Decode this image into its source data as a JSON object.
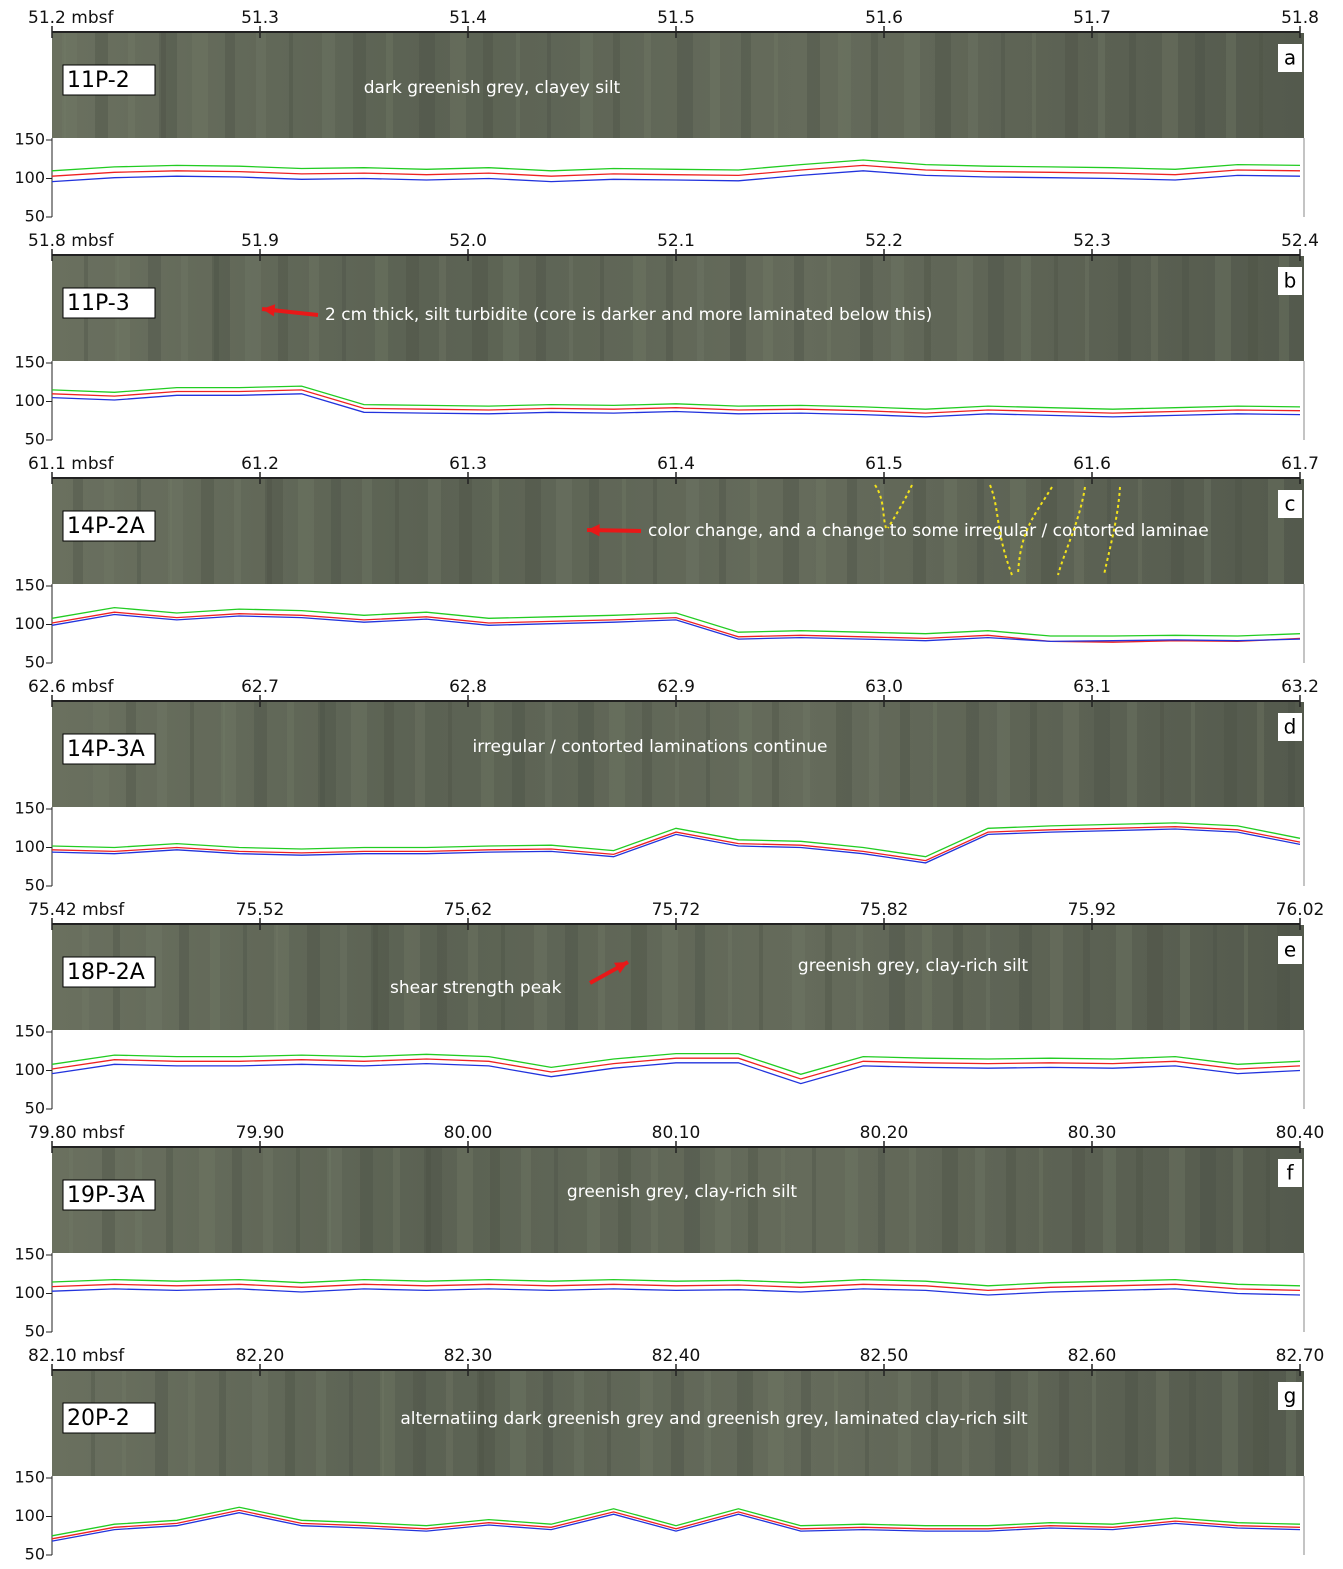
{
  "chart_data": [
    {
      "type": "line",
      "panel": "a",
      "section": "11P-2",
      "annotations": [
        "dark greenish grey, clayey silt"
      ],
      "xlim": [
        51.2,
        51.8
      ],
      "xticks": [
        {
          "value": 51.2,
          "label": "51.2 mbsf"
        },
        51.3,
        51.4,
        51.5,
        51.6,
        51.7,
        51.8
      ],
      "ylim": [
        50,
        150
      ],
      "yticks": [
        50,
        100,
        150
      ],
      "x": [
        51.2,
        51.23,
        51.26,
        51.29,
        51.32,
        51.35,
        51.38,
        51.41,
        51.44,
        51.47,
        51.5,
        51.53,
        51.56,
        51.59,
        51.62,
        51.65,
        51.68,
        51.71,
        51.74,
        51.77,
        51.8
      ],
      "series": [
        {
          "color": "#22cc22",
          "values": [
            110,
            115,
            117,
            116,
            113,
            114,
            112,
            114,
            110,
            113,
            112,
            111,
            118,
            124,
            118,
            116,
            115,
            114,
            112,
            118,
            117
          ]
        },
        {
          "color": "#ee2222",
          "values": [
            103,
            108,
            110,
            109,
            106,
            107,
            105,
            107,
            103,
            106,
            105,
            104,
            111,
            117,
            111,
            109,
            108,
            107,
            105,
            111,
            110
          ]
        },
        {
          "color": "#2233dd",
          "values": [
            96,
            101,
            103,
            102,
            99,
            100,
            98,
            100,
            96,
            99,
            98,
            97,
            104,
            110,
            104,
            102,
            101,
            100,
            98,
            104,
            103
          ]
        }
      ]
    },
    {
      "type": "line",
      "panel": "b",
      "section": "11P-3",
      "annotations": [
        "2 cm thick, silt turbidite (core is darker and more laminated below this)"
      ],
      "xlim": [
        51.8,
        52.4
      ],
      "xticks": [
        {
          "value": 51.8,
          "label": "51.8 mbsf"
        },
        51.9,
        {
          "value": 52,
          "label": "52.0"
        },
        52.1,
        52.2,
        52.3,
        52.4
      ],
      "ylim": [
        50,
        150
      ],
      "yticks": [
        50,
        100,
        150
      ],
      "x": [
        51.8,
        51.83,
        51.86,
        51.89,
        51.92,
        51.95,
        51.98,
        52.01,
        52.04,
        52.07,
        52.1,
        52.13,
        52.16,
        52.19,
        52.22,
        52.25,
        52.28,
        52.31,
        52.34,
        52.37,
        52.4
      ],
      "series": [
        {
          "color": "#22cc22",
          "values": [
            115,
            112,
            118,
            118,
            120,
            96,
            95,
            94,
            96,
            95,
            97,
            94,
            95,
            93,
            90,
            94,
            92,
            90,
            92,
            94,
            93
          ]
        },
        {
          "color": "#ee2222",
          "values": [
            110,
            107,
            113,
            113,
            115,
            91,
            90,
            89,
            91,
            90,
            92,
            89,
            90,
            88,
            85,
            89,
            87,
            85,
            87,
            89,
            88
          ]
        },
        {
          "color": "#2233dd",
          "values": [
            105,
            102,
            108,
            108,
            110,
            86,
            85,
            84,
            86,
            85,
            87,
            84,
            85,
            83,
            80,
            84,
            82,
            80,
            82,
            84,
            83
          ]
        }
      ]
    },
    {
      "type": "line",
      "panel": "c",
      "section": "14P-2A",
      "annotations": [
        "color change, and a change to some irregular / contorted laminae"
      ],
      "xlim": [
        61.1,
        61.7
      ],
      "xticks": [
        {
          "value": 61.1,
          "label": "61.1 mbsf"
        },
        61.2,
        61.3,
        61.4,
        61.5,
        61.6,
        61.7
      ],
      "ylim": [
        50,
        150
      ],
      "yticks": [
        50,
        100,
        150
      ],
      "x": [
        61.1,
        61.13,
        61.16,
        61.19,
        61.22,
        61.25,
        61.28,
        61.31,
        61.34,
        61.37,
        61.4,
        61.43,
        61.46,
        61.49,
        61.52,
        61.55,
        61.58,
        61.61,
        61.64,
        61.67,
        61.7
      ],
      "series": [
        {
          "color": "#22cc22",
          "values": [
            108,
            122,
            115,
            120,
            118,
            112,
            116,
            108,
            110,
            112,
            115,
            90,
            92,
            90,
            88,
            92,
            85,
            85,
            86,
            85,
            88
          ]
        },
        {
          "color": "#ee2222",
          "values": [
            102,
            116,
            109,
            114,
            112,
            106,
            110,
            102,
            104,
            106,
            109,
            84,
            86,
            84,
            82,
            86,
            78,
            77,
            79,
            78,
            82
          ]
        },
        {
          "color": "#2233dd",
          "values": [
            99,
            113,
            106,
            111,
            109,
            103,
            107,
            99,
            101,
            103,
            106,
            81,
            83,
            81,
            79,
            83,
            78,
            79,
            80,
            79,
            81
          ]
        }
      ]
    },
    {
      "type": "line",
      "panel": "d",
      "section": "14P-3A",
      "annotations": [
        "irregular / contorted laminations continue"
      ],
      "xlim": [
        62.6,
        63.2
      ],
      "xticks": [
        {
          "value": 62.6,
          "label": "62.6 mbsf"
        },
        62.7,
        62.8,
        62.9,
        {
          "value": 63,
          "label": "63.0"
        },
        63.1,
        63.2
      ],
      "ylim": [
        50,
        150
      ],
      "yticks": [
        50,
        100,
        150
      ],
      "x": [
        62.6,
        62.63,
        62.66,
        62.69,
        62.72,
        62.75,
        62.78,
        62.81,
        62.84,
        62.87,
        62.9,
        62.93,
        62.96,
        62.99,
        63.02,
        63.05,
        63.08,
        63.11,
        63.14,
        63.17,
        63.2
      ],
      "series": [
        {
          "color": "#22cc22",
          "values": [
            102,
            100,
            105,
            100,
            98,
            100,
            100,
            102,
            103,
            96,
            125,
            110,
            108,
            100,
            88,
            125,
            128,
            130,
            132,
            128,
            112
          ]
        },
        {
          "color": "#ee2222",
          "values": [
            97,
            95,
            100,
            95,
            93,
            95,
            95,
            97,
            98,
            91,
            120,
            105,
            103,
            95,
            83,
            120,
            123,
            125,
            127,
            123,
            107
          ]
        },
        {
          "color": "#2233dd",
          "values": [
            94,
            92,
            97,
            92,
            90,
            92,
            92,
            94,
            95,
            88,
            117,
            102,
            100,
            92,
            80,
            117,
            120,
            122,
            124,
            120,
            104
          ]
        }
      ]
    },
    {
      "type": "line",
      "panel": "e",
      "section": "18P-2A",
      "annotations": [
        "shear strength peak",
        "greenish grey, clay-rich silt"
      ],
      "xlim": [
        75.42,
        76.02
      ],
      "xticks": [
        {
          "value": 75.42,
          "label": "75.42 mbsf"
        },
        75.52,
        75.62,
        75.72,
        75.82,
        75.92,
        76.02
      ],
      "ylim": [
        50,
        150
      ],
      "yticks": [
        50,
        100,
        150
      ],
      "x": [
        75.42,
        75.45,
        75.48,
        75.51,
        75.54,
        75.57,
        75.6,
        75.63,
        75.66,
        75.69,
        75.72,
        75.75,
        75.78,
        75.81,
        75.84,
        75.87,
        75.9,
        75.93,
        75.96,
        75.99,
        76.02
      ],
      "series": [
        {
          "color": "#22cc22",
          "values": [
            108,
            120,
            118,
            118,
            120,
            118,
            121,
            118,
            104,
            115,
            122,
            122,
            95,
            118,
            116,
            115,
            116,
            115,
            118,
            108,
            112
          ]
        },
        {
          "color": "#ee2222",
          "values": [
            102,
            114,
            112,
            112,
            114,
            112,
            115,
            112,
            98,
            109,
            116,
            116,
            89,
            112,
            110,
            109,
            110,
            109,
            112,
            102,
            106
          ]
        },
        {
          "color": "#2233dd",
          "values": [
            96,
            108,
            106,
            106,
            108,
            106,
            109,
            106,
            92,
            103,
            110,
            110,
            83,
            106,
            104,
            103,
            104,
            103,
            106,
            96,
            100
          ]
        }
      ]
    },
    {
      "type": "line",
      "panel": "f",
      "section": "19P-3A",
      "annotations": [
        "greenish grey, clay-rich silt"
      ],
      "xlim": [
        79.8,
        80.4
      ],
      "xticks": [
        {
          "value": 79.8,
          "label": "79.80 mbsf"
        },
        {
          "value": 79.9,
          "label": "79.90"
        },
        {
          "value": 80,
          "label": "80.00"
        },
        {
          "value": 80.1,
          "label": "80.10"
        },
        {
          "value": 80.2,
          "label": "80.20"
        },
        {
          "value": 80.3,
          "label": "80.30"
        },
        {
          "value": 80.4,
          "label": "80.40"
        }
      ],
      "ylim": [
        50,
        150
      ],
      "yticks": [
        50,
        100,
        150
      ],
      "x": [
        79.8,
        79.83,
        79.86,
        79.89,
        79.92,
        79.95,
        79.98,
        80.01,
        80.04,
        80.07,
        80.1,
        80.13,
        80.16,
        80.19,
        80.22,
        80.25,
        80.28,
        80.31,
        80.34,
        80.37,
        80.4
      ],
      "series": [
        {
          "color": "#22cc22",
          "values": [
            115,
            118,
            116,
            118,
            114,
            118,
            116,
            118,
            116,
            118,
            116,
            117,
            114,
            118,
            116,
            110,
            114,
            116,
            118,
            112,
            110
          ]
        },
        {
          "color": "#ee2222",
          "values": [
            109,
            112,
            110,
            112,
            108,
            112,
            110,
            112,
            110,
            112,
            110,
            111,
            108,
            112,
            110,
            104,
            108,
            110,
            112,
            106,
            104
          ]
        },
        {
          "color": "#2233dd",
          "values": [
            103,
            106,
            104,
            106,
            102,
            106,
            104,
            106,
            104,
            106,
            104,
            105,
            102,
            106,
            104,
            98,
            102,
            104,
            106,
            100,
            98
          ]
        }
      ]
    },
    {
      "type": "line",
      "panel": "g",
      "section": "20P-2",
      "annotations": [
        "alternatiing dark greenish grey and greenish grey, laminated clay-rich silt"
      ],
      "xlim": [
        82.1,
        82.7
      ],
      "xticks": [
        {
          "value": 82.1,
          "label": "82.10 mbsf"
        },
        {
          "value": 82.2,
          "label": "82.20"
        },
        {
          "value": 82.3,
          "label": "82.30"
        },
        {
          "value": 82.4,
          "label": "82.40"
        },
        {
          "value": 82.5,
          "label": "82.50"
        },
        {
          "value": 82.6,
          "label": "82.60"
        },
        {
          "value": 82.7,
          "label": "82.70"
        }
      ],
      "ylim": [
        50,
        150
      ],
      "yticks": [
        50,
        100,
        150
      ],
      "x": [
        82.1,
        82.13,
        82.16,
        82.19,
        82.22,
        82.25,
        82.28,
        82.31,
        82.34,
        82.37,
        82.4,
        82.43,
        82.46,
        82.49,
        82.52,
        82.55,
        82.58,
        82.61,
        82.64,
        82.67,
        82.7
      ],
      "series": [
        {
          "color": "#22cc22",
          "values": [
            75,
            90,
            95,
            112,
            95,
            92,
            88,
            96,
            90,
            110,
            88,
            110,
            88,
            90,
            88,
            88,
            92,
            90,
            98,
            92,
            90
          ]
        },
        {
          "color": "#ee2222",
          "values": [
            71,
            86,
            91,
            108,
            91,
            88,
            84,
            92,
            86,
            106,
            84,
            106,
            84,
            86,
            84,
            84,
            88,
            86,
            94,
            88,
            86
          ]
        },
        {
          "color": "#2233dd",
          "values": [
            68,
            83,
            88,
            105,
            88,
            85,
            81,
            89,
            83,
            103,
            81,
            103,
            81,
            83,
            81,
            81,
            85,
            83,
            91,
            85,
            83
          ]
        }
      ]
    }
  ]
}
